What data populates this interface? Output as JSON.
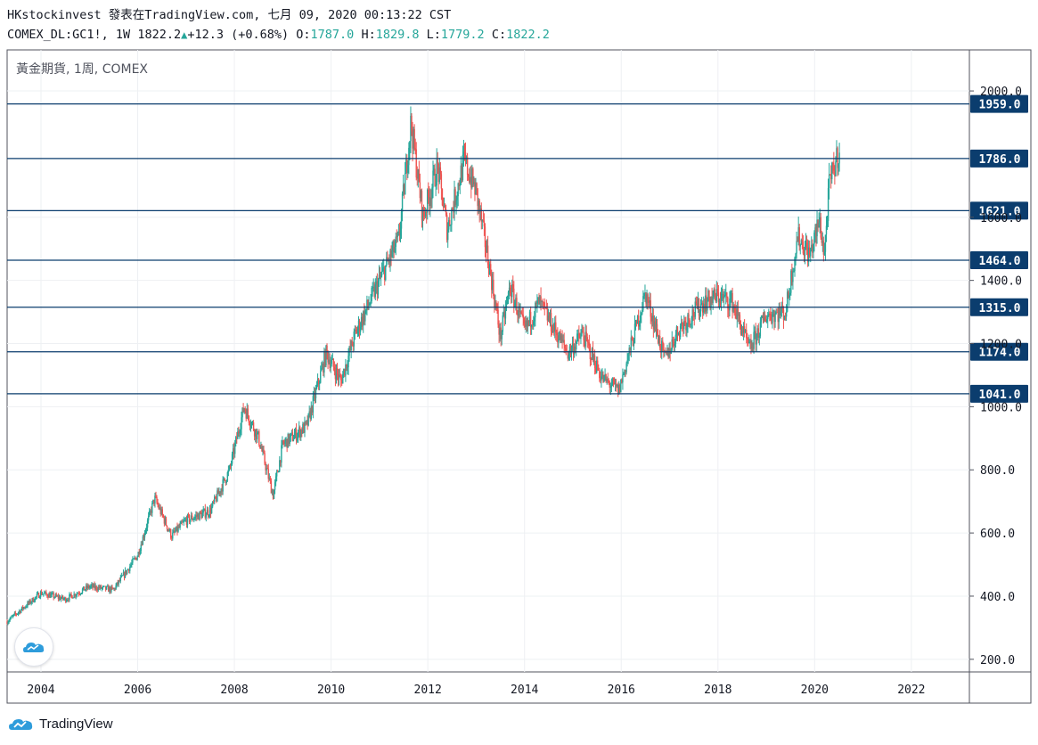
{
  "header": {
    "line1": "HKstockinvest 發表在TradingView.com, 七月 09, 2020 00:13:22 CST",
    "symbol": "COMEX_DL:GC1!, 1W",
    "last": "1822.2",
    "change": "+12.3 (+0.68%)",
    "o_label": "O:",
    "o_val": "1787.0",
    "h_label": "H:",
    "h_val": "1829.8",
    "l_label": "L:",
    "l_val": "1779.2",
    "c_label": "C:",
    "c_val": "1822.2"
  },
  "legend": "黃金期貨, 1周, COMEX",
  "brand": {
    "name": "TradingView",
    "logo_icon": "tradingview-logo-icon"
  },
  "colors": {
    "up": "#26a69a",
    "down": "#ef5350",
    "hline": "#0b3d6e",
    "grid": "#eef0f3",
    "axis": "#50535e"
  },
  "chart_data": {
    "type": "candlestick",
    "title": "黃金期貨, 1周, COMEX",
    "xlabel": "",
    "ylabel": "",
    "x_ticks": [
      "2004",
      "2006",
      "2008",
      "2010",
      "2012",
      "2014",
      "2016",
      "2018",
      "2020",
      "2022"
    ],
    "y_ticks": [
      200,
      400,
      600,
      800,
      1000,
      1200,
      1400,
      1600,
      2000
    ],
    "y_tick_labels": [
      "200.0",
      "400.0",
      "600.0",
      "800.0",
      "1000.0",
      "1200.0",
      "1400.0",
      "1600.0",
      "2000.0"
    ],
    "ylim": [
      160,
      2130
    ],
    "xlim": [
      2003.3,
      2023.2
    ],
    "grid": true,
    "horizontal_levels": [
      {
        "value": 1959.0,
        "label": "1959.0"
      },
      {
        "value": 1786.0,
        "label": "1786.0"
      },
      {
        "value": 1621.0,
        "label": "1621.0"
      },
      {
        "value": 1464.0,
        "label": "1464.0"
      },
      {
        "value": 1315.0,
        "label": "1315.0"
      },
      {
        "value": 1174.0,
        "label": "1174.0"
      },
      {
        "value": 1041.0,
        "label": "1041.0"
      }
    ],
    "price_path": [
      {
        "x": 2003.3,
        "y": 320
      },
      {
        "x": 2004.0,
        "y": 410
      },
      {
        "x": 2004.5,
        "y": 390
      },
      {
        "x": 2005.0,
        "y": 430
      },
      {
        "x": 2005.5,
        "y": 420
      },
      {
        "x": 2006.0,
        "y": 530
      },
      {
        "x": 2006.35,
        "y": 710
      },
      {
        "x": 2006.7,
        "y": 590
      },
      {
        "x": 2007.0,
        "y": 640
      },
      {
        "x": 2007.5,
        "y": 670
      },
      {
        "x": 2007.9,
        "y": 800
      },
      {
        "x": 2008.2,
        "y": 1000
      },
      {
        "x": 2008.5,
        "y": 900
      },
      {
        "x": 2008.8,
        "y": 720
      },
      {
        "x": 2009.0,
        "y": 880
      },
      {
        "x": 2009.5,
        "y": 940
      },
      {
        "x": 2009.9,
        "y": 1170
      },
      {
        "x": 2010.2,
        "y": 1080
      },
      {
        "x": 2010.5,
        "y": 1230
      },
      {
        "x": 2011.0,
        "y": 1400
      },
      {
        "x": 2011.4,
        "y": 1530
      },
      {
        "x": 2011.65,
        "y": 1900
      },
      {
        "x": 2011.9,
        "y": 1600
      },
      {
        "x": 2012.2,
        "y": 1760
      },
      {
        "x": 2012.4,
        "y": 1560
      },
      {
        "x": 2012.75,
        "y": 1780
      },
      {
        "x": 2013.0,
        "y": 1680
      },
      {
        "x": 2013.3,
        "y": 1420
      },
      {
        "x": 2013.5,
        "y": 1220
      },
      {
        "x": 2013.7,
        "y": 1380
      },
      {
        "x": 2014.0,
        "y": 1240
      },
      {
        "x": 2014.3,
        "y": 1330
      },
      {
        "x": 2014.9,
        "y": 1170
      },
      {
        "x": 2015.2,
        "y": 1230
      },
      {
        "x": 2015.6,
        "y": 1090
      },
      {
        "x": 2015.95,
        "y": 1050
      },
      {
        "x": 2016.5,
        "y": 1360
      },
      {
        "x": 2016.9,
        "y": 1150
      },
      {
        "x": 2017.2,
        "y": 1250
      },
      {
        "x": 2017.7,
        "y": 1330
      },
      {
        "x": 2018.0,
        "y": 1350
      },
      {
        "x": 2018.3,
        "y": 1330
      },
      {
        "x": 2018.65,
        "y": 1180
      },
      {
        "x": 2019.0,
        "y": 1290
      },
      {
        "x": 2019.4,
        "y": 1300
      },
      {
        "x": 2019.65,
        "y": 1540
      },
      {
        "x": 2019.9,
        "y": 1480
      },
      {
        "x": 2020.1,
        "y": 1590
      },
      {
        "x": 2020.2,
        "y": 1480
      },
      {
        "x": 2020.3,
        "y": 1700
      },
      {
        "x": 2020.52,
        "y": 1822.2
      }
    ]
  }
}
